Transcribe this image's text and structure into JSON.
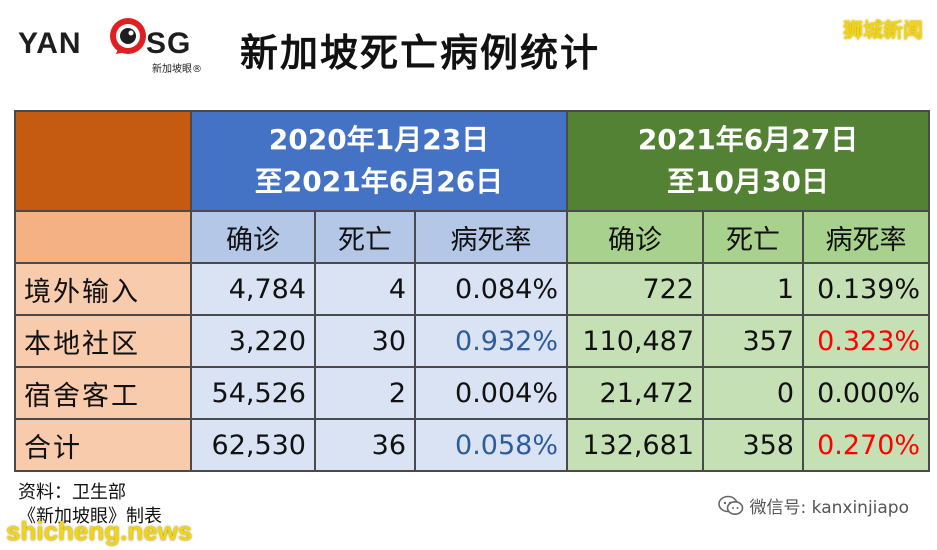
{
  "header": {
    "logo_left": "YAN",
    "logo_right": "SG",
    "logo_sub": "新加坡眼®",
    "title": "新加坡死亡病例统计",
    "watermark_top": "狮城新闻"
  },
  "table": {
    "periods": [
      {
        "line1": "2020年1月23日",
        "line2": "至2021年6月26日"
      },
      {
        "line1": "2021年6月27日",
        "line2": "至10月30日"
      }
    ],
    "columns": [
      "确诊",
      "死亡",
      "病死率"
    ],
    "rows": [
      {
        "label": "境外输入",
        "p1": [
          "4,784",
          "4",
          "0.084%"
        ],
        "p2": [
          "722",
          "1",
          "0.139%"
        ]
      },
      {
        "label": "本地社区",
        "p1": [
          "3,220",
          "30",
          "0.932%"
        ],
        "p2": [
          "110,487",
          "357",
          "0.323%"
        ]
      },
      {
        "label": "宿舍客工",
        "p1": [
          "54,526",
          "2",
          "0.004%"
        ],
        "p2": [
          "21,472",
          "0",
          "0.000%"
        ]
      },
      {
        "label": "合计",
        "p1": [
          "62,530",
          "36",
          "0.058%"
        ],
        "p2": [
          "132,681",
          "358",
          "0.270%"
        ]
      }
    ]
  },
  "footer": {
    "source_line1": "资料：卫生部",
    "source_line2": "《新加坡眼》制表",
    "wechat": "微信号: kanxinjiapo",
    "watermark_bottom": "shicheng.news"
  },
  "colors": {
    "period1_header": "#4472c4",
    "period2_header": "#548235",
    "category_header": "#c55a11",
    "highlight_blue": "#2e5c9a",
    "highlight_red": "#ff0000"
  }
}
